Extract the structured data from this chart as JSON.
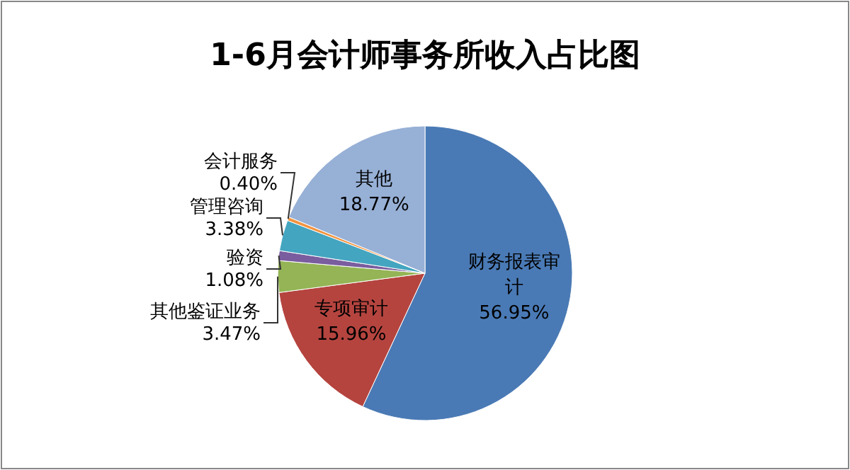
{
  "chart_data": {
    "type": "pie",
    "title": "1-6月会计师事务所收入占比图",
    "categories": [
      "财务报表审计",
      "专项审计",
      "其他鉴证业务",
      "验资",
      "管理咨询",
      "会计服务",
      "其他"
    ],
    "values": [
      56.95,
      15.96,
      3.47,
      1.08,
      3.38,
      0.4,
      18.77
    ],
    "colors": [
      "#4a7ab5",
      "#b5443f",
      "#94b455",
      "#7a5d9e",
      "#44a5c0",
      "#f29440",
      "#97b0d6"
    ],
    "value_labels": [
      "56.95%",
      "15.96%",
      "3.47%",
      "1.08%",
      "3.38%",
      "0.40%",
      "18.77%"
    ]
  }
}
